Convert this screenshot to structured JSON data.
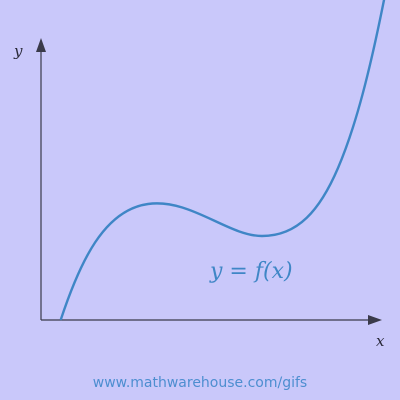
{
  "diagram": {
    "y_axis_label": "y",
    "x_axis_label": "x",
    "function_label": "y = f(x)",
    "footer_link": "www.mathwarehouse.com/gifs"
  },
  "colors": {
    "background": "#c9c8fa",
    "curve": "#3f86c6",
    "axes": "#3a3a4a",
    "link": "#4d8ed0"
  }
}
